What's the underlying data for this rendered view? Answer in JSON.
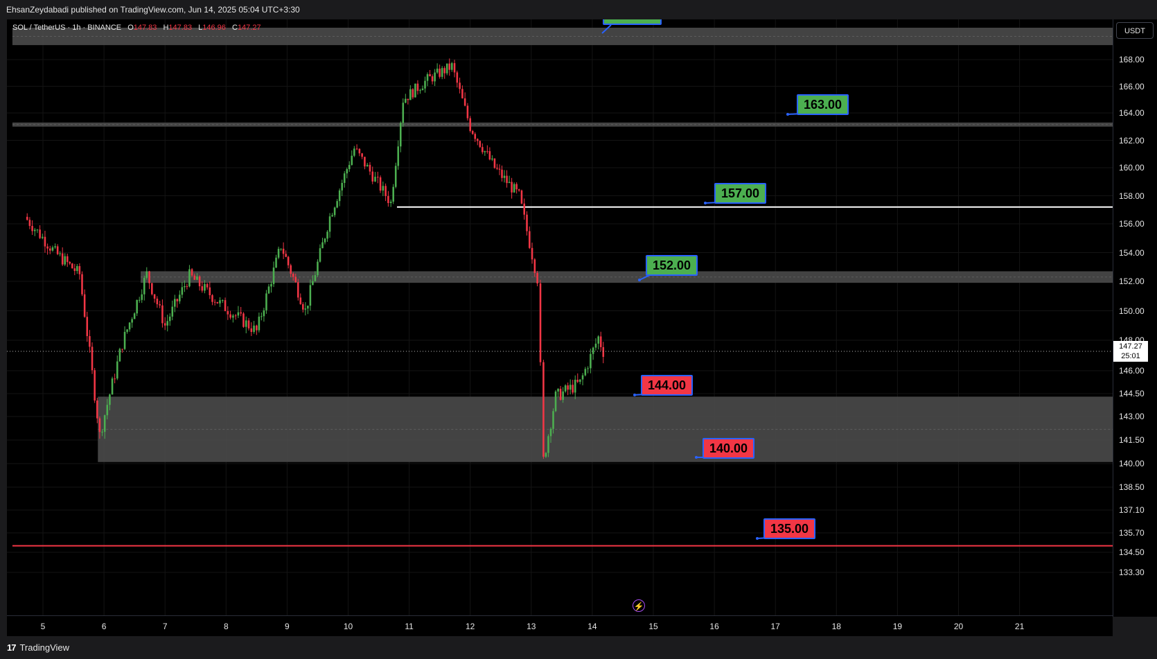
{
  "publish_line": "EhsanZeydabadi published on TradingView.com, Jun 14, 2025 05:04 UTC+3:30",
  "legend": {
    "symbol": "SOL / TetherUS · 1h · BINANCE",
    "o_label": "O",
    "o_value": "147.83",
    "h_label": "H",
    "h_value": "147.83",
    "l_label": "L",
    "l_value": "146.96",
    "c_label": "C",
    "c_value": "147.27"
  },
  "currency_button": "USDT",
  "last_price": {
    "value": "147.27",
    "countdown": "25:01"
  },
  "brand": {
    "logo": "17",
    "name": "TradingView"
  },
  "icons": {
    "flash": "lightning-bolt-icon",
    "logo": "tradingview-logo-icon"
  },
  "colors": {
    "up": "#4caf50",
    "down": "#f23645",
    "zone": "#4a4a4a",
    "label_border": "#2962ff",
    "support_line": "#f23645",
    "resistance_line": "#ffffff"
  },
  "price_labels": [
    {
      "text": "163.00",
      "color": "green"
    },
    {
      "text": "157.00",
      "color": "green"
    },
    {
      "text": "152.00",
      "color": "green"
    },
    {
      "text": "144.00",
      "color": "red"
    },
    {
      "text": "140.00",
      "color": "red"
    },
    {
      "text": "135.00",
      "color": "red"
    }
  ],
  "chart_data": {
    "type": "candlestick",
    "title": "",
    "xlabel": "",
    "ylabel": "",
    "x_ticks": [
      "5",
      "6",
      "7",
      "8",
      "9",
      "10",
      "11",
      "12",
      "13",
      "14",
      "15",
      "16",
      "17",
      "18",
      "19",
      "20",
      "21"
    ],
    "y_ticks": [
      "168.00",
      "166.00",
      "164.00",
      "162.00",
      "160.00",
      "158.00",
      "156.00",
      "154.00",
      "152.00",
      "150.00",
      "148.00",
      "146.00",
      "144.50",
      "143.00",
      "141.50",
      "140.00",
      "138.50",
      "137.10",
      "135.70",
      "134.50",
      "133.30"
    ],
    "ylim": [
      133.0,
      170.0
    ],
    "grid": true,
    "key_points": [
      {
        "day": 4.7,
        "close": 156.5
      },
      {
        "day": 5.2,
        "close": 154.0
      },
      {
        "day": 5.6,
        "close": 152.5
      },
      {
        "day": 5.93,
        "close": 141.8
      },
      {
        "day": 6.3,
        "close": 147.8
      },
      {
        "day": 6.7,
        "close": 152.5
      },
      {
        "day": 7.0,
        "close": 149.0
      },
      {
        "day": 7.4,
        "close": 152.4
      },
      {
        "day": 7.9,
        "close": 150.5
      },
      {
        "day": 8.5,
        "close": 148.6
      },
      {
        "day": 8.9,
        "close": 154.5
      },
      {
        "day": 9.3,
        "close": 150.0
      },
      {
        "day": 9.7,
        "close": 156.5
      },
      {
        "day": 10.1,
        "close": 161.4
      },
      {
        "day": 10.7,
        "close": 157.5
      },
      {
        "day": 10.9,
        "close": 165.0
      },
      {
        "day": 11.3,
        "close": 166.5
      },
      {
        "day": 11.7,
        "close": 167.5
      },
      {
        "day": 12.0,
        "close": 163.0
      },
      {
        "day": 12.4,
        "close": 160.0
      },
      {
        "day": 12.8,
        "close": 158.0
      },
      {
        "day": 13.1,
        "close": 152.2
      },
      {
        "day": 13.2,
        "close": 140.2
      },
      {
        "day": 13.4,
        "close": 144.3
      },
      {
        "day": 13.8,
        "close": 145.2
      },
      {
        "day": 14.1,
        "close": 148.2
      },
      {
        "day": 14.18,
        "close": 147.27
      }
    ],
    "zones": [
      {
        "name": "top zone",
        "from": 169.0,
        "to": 170.2,
        "start_day": 4.5
      },
      {
        "name": "163 zone",
        "from": 163.0,
        "to": 163.3,
        "start_day": 4.5
      },
      {
        "name": "152 zone",
        "from": 151.9,
        "to": 152.7,
        "start_day": 6.6
      },
      {
        "name": "140-144 zone",
        "from": 140.1,
        "to": 144.3,
        "start_day": 5.9
      }
    ],
    "lines": [
      {
        "name": "157 line",
        "price": 157.2,
        "start_day": 10.8,
        "color": "#ffffff"
      },
      {
        "name": "135 line",
        "price": 134.9,
        "start_day": 4.5,
        "color": "#f23645"
      }
    ],
    "last_price": 147.27
  }
}
